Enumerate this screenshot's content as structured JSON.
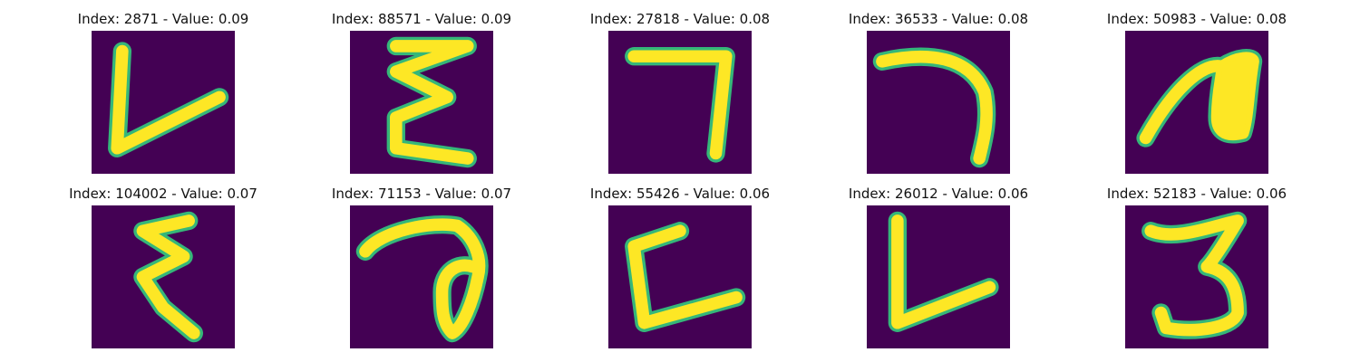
{
  "colors": {
    "background": "#440154",
    "stroke_core": "#fde725",
    "stroke_edge": "#35b779"
  },
  "thumbnails": [
    {
      "title": "Index: 2871 - Value: 0.09",
      "glyph": "letter-l-shape"
    },
    {
      "title": "Index: 88571 - Value: 0.09",
      "glyph": "sigma-e-shape"
    },
    {
      "title": "Index: 27818 - Value: 0.08",
      "glyph": "seven-corner-shape"
    },
    {
      "title": "Index: 36533 - Value: 0.08",
      "glyph": "hook-shape"
    },
    {
      "title": "Index: 50983 - Value: 0.08",
      "glyph": "blob-shape"
    },
    {
      "title": "Index: 104002 - Value: 0.07",
      "glyph": "sigma-e-shape"
    },
    {
      "title": "Index: 71153 - Value: 0.07",
      "glyph": "loop-seven-shape"
    },
    {
      "title": "Index: 55426 - Value: 0.06",
      "glyph": "letter-c-l-shape"
    },
    {
      "title": "Index: 26012 - Value: 0.06",
      "glyph": "letter-l-shape"
    },
    {
      "title": "Index: 52183 - Value: 0.06",
      "glyph": "three-shape"
    }
  ]
}
